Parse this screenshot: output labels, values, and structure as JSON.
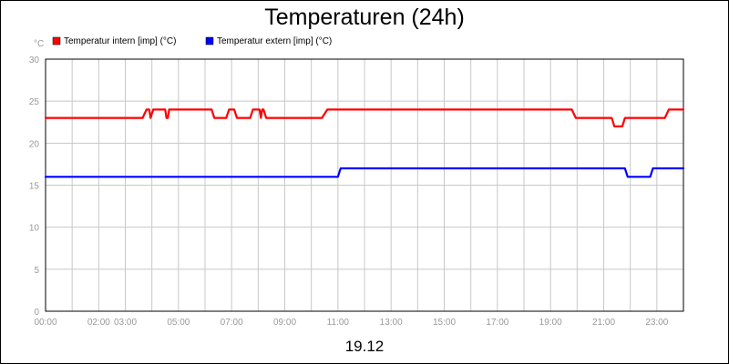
{
  "chart_data": {
    "type": "line",
    "title": "Temperaturen (24h)",
    "ylabel": "°C",
    "xlabel": "19.12",
    "ylim": [
      0,
      30
    ],
    "xlim": [
      0,
      24
    ],
    "yticks": [
      0,
      5,
      10,
      15,
      20,
      25,
      30
    ],
    "x_tick_labels": [
      {
        "x": 0,
        "label": "00:00"
      },
      {
        "x": 2,
        "label": "02:00"
      },
      {
        "x": 3,
        "label": "03:00"
      },
      {
        "x": 5,
        "label": "05:00"
      },
      {
        "x": 7,
        "label": "07:00"
      },
      {
        "x": 9,
        "label": "09:00"
      },
      {
        "x": 11,
        "label": "11:00"
      },
      {
        "x": 13,
        "label": "13:00"
      },
      {
        "x": 15,
        "label": "15:00"
      },
      {
        "x": 17,
        "label": "17:00"
      },
      {
        "x": 19,
        "label": "19:00"
      },
      {
        "x": 21,
        "label": "21:00"
      },
      {
        "x": 23,
        "label": "23:00"
      }
    ],
    "grid": true,
    "legend_position": "top-left",
    "series": [
      {
        "name": "Temperatur intern [imp] (°C)",
        "color": "#ff0000",
        "x": [
          0,
          3.65,
          3.8,
          3.9,
          3.95,
          4.05,
          4.5,
          4.55,
          4.6,
          4.65,
          4.75,
          6.25,
          6.35,
          6.8,
          6.9,
          7.1,
          7.2,
          7.7,
          7.8,
          8.05,
          8.1,
          8.15,
          8.2,
          8.3,
          10.4,
          10.6,
          19.8,
          19.95,
          21.3,
          21.4,
          21.7,
          21.8,
          21.95,
          23.3,
          23.45,
          24
        ],
        "y": [
          23,
          23,
          24,
          24,
          23,
          24,
          24,
          23,
          23,
          24,
          24,
          24,
          23,
          23,
          24,
          24,
          23,
          23,
          24,
          24,
          23,
          24,
          24,
          23,
          23,
          24,
          24,
          23,
          23,
          22,
          22,
          23,
          23,
          23,
          24,
          24
        ]
      },
      {
        "name": "Temperatur extern [imp] (°C)",
        "color": "#0000ff",
        "x": [
          0,
          11.0,
          11.1,
          21.8,
          21.9,
          22.75,
          22.85,
          24
        ],
        "y": [
          16,
          16,
          17,
          17,
          16,
          16,
          17,
          17
        ]
      }
    ]
  }
}
